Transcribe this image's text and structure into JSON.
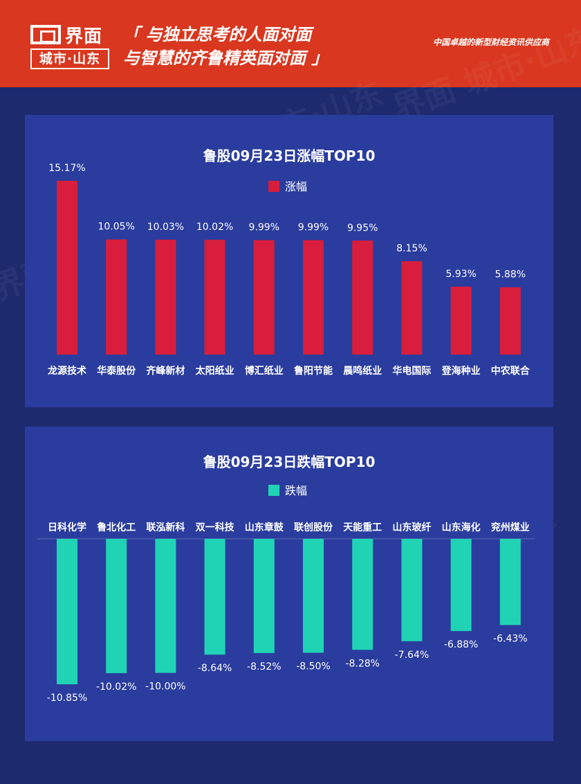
{
  "header": {
    "logo_word": "界面",
    "logo_sub": "城市·山东",
    "slogan_line1": "「 与独立思考的人面对面",
    "slogan_line2": "与智慧的齐鲁精英面对面 」",
    "tagline": "中国卓越的新型财经资讯供应商"
  },
  "watermark": "界面 城市·山东",
  "colors": {
    "header": "#d9371f",
    "background": "#1e2a6e",
    "panel": "#2a3c9e",
    "gain_bar": "#d81e3c",
    "loss_bar": "#20d3b5"
  },
  "chart_data": [
    {
      "type": "bar",
      "title": "鲁股09月23日涨幅TOP10",
      "categories": [
        "龙源技术",
        "华泰股份",
        "齐峰新材",
        "太阳纸业",
        "博汇纸业",
        "鲁阳节能",
        "晨鸣纸业",
        "华电国际",
        "登海种业",
        "中农联合"
      ],
      "series": [
        {
          "name": "涨幅",
          "values": [
            15.17,
            10.05,
            10.03,
            10.02,
            9.99,
            9.99,
            9.95,
            8.15,
            5.93,
            5.88
          ]
        }
      ],
      "value_labels": [
        "15.17%",
        "10.05%",
        "10.03%",
        "10.02%",
        "9.99%",
        "9.99%",
        "9.95%",
        "8.15%",
        "5.93%",
        "5.88%"
      ],
      "ylim": [
        0,
        15.17
      ],
      "legend_position": "top-center",
      "grid": false
    },
    {
      "type": "bar",
      "title": "鲁股09月23日跌幅TOP10",
      "categories": [
        "日科化学",
        "鲁北化工",
        "联泓新科",
        "双一科技",
        "山东章鼓",
        "联创股份",
        "天能重工",
        "山东玻纤",
        "山东海化",
        "兖州煤业"
      ],
      "series": [
        {
          "name": "跌幅",
          "values": [
            -10.85,
            -10.02,
            -10.0,
            -8.64,
            -8.52,
            -8.5,
            -8.28,
            -7.64,
            -6.88,
            -6.43
          ]
        }
      ],
      "value_labels": [
        "-10.85%",
        "-10.02%",
        "-10.00%",
        "-8.64%",
        "-8.52%",
        "-8.50%",
        "-8.28%",
        "-7.64%",
        "-6.88%",
        "-6.43%"
      ],
      "ylim": [
        -10.85,
        0
      ],
      "legend_position": "top-center",
      "grid": false
    }
  ]
}
